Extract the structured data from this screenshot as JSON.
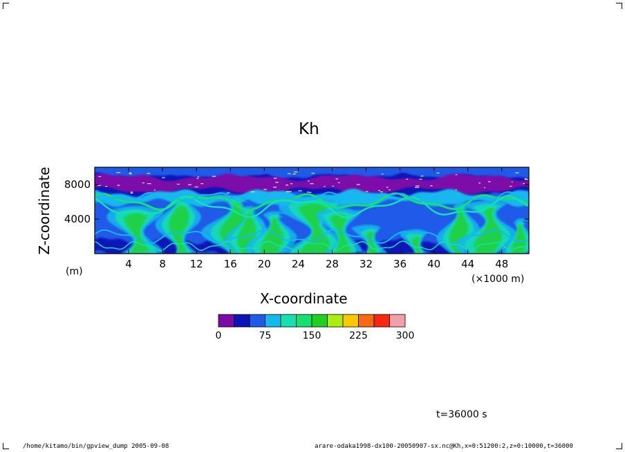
{
  "chart_data": {
    "type": "heatmap",
    "title": "Kh",
    "xlabel": "X-coordinate",
    "ylabel": "Z-coordinate",
    "x_unit_label": "(×1000 m)",
    "y_unit_label": "(m)",
    "x_ticks": [
      4,
      8,
      12,
      16,
      20,
      24,
      28,
      32,
      36,
      40,
      44,
      48
    ],
    "y_ticks": [
      4000,
      8000
    ],
    "xlim": [
      0,
      51.2
    ],
    "ylim": [
      0,
      10000
    ],
    "colorbar": {
      "levels": [
        0,
        25,
        50,
        75,
        100,
        125,
        150,
        175,
        200,
        225,
        250,
        275,
        300
      ],
      "tick_labels": [
        "0",
        "75",
        "150",
        "225",
        "300"
      ],
      "colors": [
        "#7b0aa8",
        "#0c14b8",
        "#1f5ae8",
        "#12b8ee",
        "#14e0b0",
        "#16e070",
        "#20d020",
        "#a8ee10",
        "#f8c800",
        "#f86a10",
        "#f82810",
        "#f0a0a8"
      ]
    },
    "layers": [
      {
        "z_range": [
          0,
          1800
        ],
        "dominant": "blue with cyan/green streaks"
      },
      {
        "z_range": [
          1800,
          5500
        ],
        "dominant": "blue-to-cyan turbulent plumes, green near x=16,26,46"
      },
      {
        "z_range": [
          5500,
          7200
        ],
        "dominant": "cyan/green wavy band"
      },
      {
        "z_range": [
          7200,
          9000
        ],
        "dominant": "purple and dark blue"
      },
      {
        "z_range": [
          9000,
          10000
        ],
        "dominant": "blue"
      }
    ]
  },
  "annotations": {
    "time": "t=36000 s",
    "footer_left": "/home/kitamo/bin/gpview_dump   2005-09-08",
    "footer_right": "arare-odaka1998-dx100-20050907-sx.nc@Kh,x=0:51200:2,z=0:10000,t=36000"
  }
}
